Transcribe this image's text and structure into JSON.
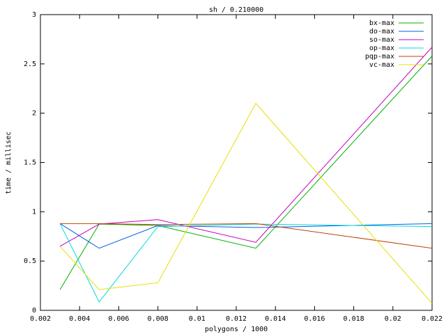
{
  "chart_data": {
    "type": "line",
    "title": "sh / 0.210000",
    "x_label": "polygons / 1000",
    "y_label": "time / millisec",
    "x": [
      0.003,
      0.005,
      0.008,
      0.013,
      0.022
    ],
    "series": [
      {
        "name": "bx-max",
        "color": "#00b000",
        "values": [
          0.21,
          0.875,
          0.86,
          0.63,
          2.58
        ]
      },
      {
        "name": "do-max",
        "color": "#0060e0",
        "values": [
          0.88,
          0.63,
          0.86,
          0.84,
          0.88
        ]
      },
      {
        "name": "so-max",
        "color": "#c000c0",
        "values": [
          0.65,
          0.875,
          0.92,
          0.69,
          2.67
        ]
      },
      {
        "name": "op-max",
        "color": "#00d8e0",
        "values": [
          0.88,
          0.085,
          0.85,
          0.875,
          0.85
        ]
      },
      {
        "name": "pqp-max",
        "color": "#c04000",
        "values": [
          0.88,
          0.88,
          0.87,
          0.88,
          0.63
        ]
      },
      {
        "name": "vc-max",
        "color": "#e8e000",
        "values": [
          0.65,
          0.21,
          0.28,
          2.1,
          0.07
        ]
      }
    ],
    "xlim": [
      0.002,
      0.022
    ],
    "xticks": [
      0.002,
      0.004,
      0.006,
      0.008,
      0.01,
      0.012,
      0.014,
      0.016,
      0.018,
      0.02,
      0.022
    ],
    "ylim": [
      0,
      3
    ],
    "yticks": [
      0,
      0.5,
      1,
      1.5,
      2,
      2.5,
      3
    ],
    "grid": false,
    "legend": "top-right"
  }
}
